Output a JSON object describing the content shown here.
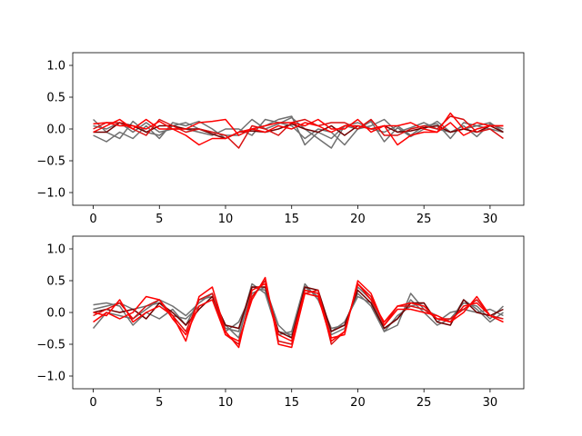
{
  "chart_data": [
    {
      "type": "line",
      "title": "",
      "xlabel": "",
      "ylabel": "",
      "xlim": [
        -1.55,
        32.55
      ],
      "ylim": [
        -1.2,
        1.2
      ],
      "xticks": [
        0,
        5,
        10,
        15,
        20,
        25,
        30
      ],
      "yticks": [
        -1.0,
        -0.5,
        0.0,
        0.5,
        1.0
      ],
      "xtick_labels": [
        "0",
        "5",
        "10",
        "15",
        "20",
        "25",
        "30"
      ],
      "ytick_labels": [
        "−1.0",
        "−0.5",
        "0.0",
        "0.5",
        "1.0"
      ],
      "grid": false,
      "x": [
        0,
        1,
        2,
        3,
        4,
        5,
        6,
        7,
        8,
        9,
        10,
        11,
        12,
        13,
        14,
        15,
        16,
        17,
        18,
        19,
        20,
        21,
        22,
        23,
        24,
        25,
        26,
        27,
        28,
        29,
        30,
        31
      ],
      "series": [
        {
          "color": "#707070",
          "values": [
            0.15,
            -0.05,
            -0.15,
            0.12,
            -0.05,
            -0.1,
            0.05,
            0.1,
            0.0,
            -0.05,
            -0.1,
            -0.1,
            0.0,
            0.05,
            0.15,
            0.2,
            -0.25,
            -0.05,
            -0.15,
            0.05,
            0.1,
            0.0,
            -0.05,
            0.05,
            -0.1,
            0.05,
            0.08,
            -0.15,
            0.1,
            0.05,
            0.0,
            -0.05
          ]
        },
        {
          "color": "#707070",
          "values": [
            -0.1,
            -0.2,
            -0.05,
            -0.15,
            0.05,
            -0.15,
            0.1,
            0.05,
            0.12,
            0.0,
            -0.15,
            -0.05,
            0.15,
            0.0,
            0.08,
            0.18,
            0.0,
            -0.15,
            -0.3,
            0.05,
            0.0,
            0.12,
            -0.2,
            0.02,
            -0.12,
            0.0,
            0.12,
            -0.05,
            0.05,
            -0.12,
            0.08,
            0.0
          ]
        },
        {
          "color": "#707070",
          "values": [
            0.05,
            0.0,
            0.1,
            -0.05,
            0.1,
            -0.05,
            0.0,
            0.0,
            -0.05,
            -0.1,
            0.0,
            0.0,
            -0.1,
            0.15,
            0.1,
            0.05,
            -0.15,
            0.0,
            -0.05,
            -0.25,
            0.0,
            0.05,
            0.15,
            -0.05,
            0.02,
            0.1,
            0.0,
            -0.05,
            0.0,
            0.05,
            0.1,
            -0.05
          ]
        },
        {
          "color": "#700000",
          "values": [
            -0.05,
            -0.05,
            0.1,
            0.05,
            -0.05,
            0.05,
            0.05,
            0.0,
            0.0,
            -0.08,
            -0.15,
            -0.05,
            -0.03,
            -0.05,
            0.0,
            0.08,
            0.0,
            -0.05,
            0.05,
            -0.1,
            0.05,
            0.0,
            0.05,
            -0.05,
            -0.03,
            0.02,
            0.05,
            -0.05,
            0.0,
            -0.05,
            0.05,
            -0.05
          ]
        },
        {
          "color": "#d81010",
          "values": [
            0.0,
            0.1,
            0.1,
            0.0,
            -0.1,
            0.15,
            0.05,
            -0.05,
            0.0,
            -0.05,
            -0.1,
            -0.3,
            0.05,
            0.0,
            -0.1,
            0.1,
            0.15,
            0.05,
            0.1,
            0.1,
            0.0,
            0.15,
            -0.1,
            -0.1,
            0.0,
            0.05,
            0.0,
            0.2,
            0.15,
            -0.05,
            0.0,
            -0.15
          ]
        },
        {
          "color": "#ff0000",
          "values": [
            -0.05,
            0.05,
            0.15,
            0.0,
            0.15,
            0.0,
            0.0,
            -0.1,
            -0.25,
            -0.15,
            -0.15,
            -0.05,
            0.0,
            0.05,
            0.1,
            0.1,
            0.05,
            0.15,
            0.0,
            0.0,
            0.15,
            -0.05,
            0.05,
            -0.25,
            -0.1,
            -0.05,
            -0.05,
            0.25,
            0.0,
            0.1,
            0.05,
            0.05
          ]
        },
        {
          "color": "#ff0000",
          "values": [
            0.08,
            0.1,
            0.05,
            0.05,
            0.0,
            0.12,
            0.0,
            0.0,
            0.1,
            0.12,
            0.15,
            -0.1,
            0.0,
            -0.05,
            0.05,
            0.0,
            0.1,
            0.05,
            -0.05,
            0.05,
            0.05,
            0.0,
            0.05,
            0.05,
            0.1,
            0.0,
            -0.05,
            0.1,
            -0.1,
            0.0,
            0.05,
            0.05
          ]
        }
      ]
    },
    {
      "type": "line",
      "title": "",
      "xlabel": "",
      "ylabel": "",
      "xlim": [
        -1.55,
        32.55
      ],
      "ylim": [
        -1.2,
        1.2
      ],
      "xticks": [
        0,
        5,
        10,
        15,
        20,
        25,
        30
      ],
      "yticks": [
        -1.0,
        -0.5,
        0.0,
        0.5,
        1.0
      ],
      "xtick_labels": [
        "0",
        "5",
        "10",
        "15",
        "20",
        "25",
        "30"
      ],
      "ytick_labels": [
        "−1.0",
        "−0.5",
        "0.0",
        "0.5",
        "1.0"
      ],
      "grid": false,
      "x": [
        0,
        1,
        2,
        3,
        4,
        5,
        6,
        7,
        8,
        9,
        10,
        11,
        12,
        13,
        14,
        15,
        16,
        17,
        18,
        19,
        20,
        21,
        22,
        23,
        24,
        25,
        26,
        27,
        28,
        29,
        30,
        31
      ],
      "series": [
        {
          "color": "#707070",
          "values": [
            0.12,
            0.15,
            0.1,
            -0.2,
            0.0,
            -0.1,
            0.05,
            -0.2,
            0.2,
            0.25,
            -0.2,
            -0.4,
            0.4,
            0.35,
            -0.3,
            -0.35,
            0.4,
            0.25,
            -0.25,
            -0.2,
            0.3,
            0.1,
            -0.3,
            -0.2,
            0.3,
            0.05,
            -0.05,
            -0.15,
            0.2,
            0.05,
            -0.15,
            0.0
          ]
        },
        {
          "color": "#707070",
          "values": [
            -0.25,
            0.0,
            -0.05,
            -0.1,
            0.05,
            0.2,
            0.1,
            -0.05,
            0.15,
            0.3,
            -0.3,
            -0.15,
            0.3,
            0.4,
            -0.2,
            -0.4,
            0.35,
            0.3,
            -0.35,
            -0.25,
            0.4,
            0.2,
            -0.25,
            -0.1,
            0.2,
            0.0,
            -0.2,
            -0.1,
            0.15,
            0.1,
            -0.1,
            0.1
          ]
        },
        {
          "color": "#707070",
          "values": [
            0.05,
            0.1,
            0.15,
            0.05,
            0.1,
            0.15,
            -0.05,
            -0.1,
            0.1,
            0.2,
            -0.25,
            -0.3,
            0.45,
            0.3,
            -0.35,
            -0.3,
            0.45,
            0.2,
            -0.3,
            -0.15,
            0.25,
            0.15,
            -0.3,
            -0.05,
            0.1,
            0.15,
            -0.15,
            0.0,
            0.05,
            0.0,
            0.05,
            -0.05
          ]
        },
        {
          "color": "#700000",
          "values": [
            0.0,
            0.05,
            0.0,
            0.05,
            -0.1,
            0.15,
            0.0,
            -0.2,
            0.05,
            0.25,
            -0.2,
            -0.25,
            0.4,
            0.4,
            -0.3,
            -0.4,
            0.4,
            0.35,
            -0.3,
            -0.2,
            0.35,
            0.15,
            -0.25,
            -0.1,
            0.15,
            0.15,
            -0.15,
            -0.2,
            0.2,
            0.0,
            -0.05,
            0.05
          ]
        },
        {
          "color": "#d81010",
          "values": [
            -0.05,
            0.05,
            0.15,
            -0.1,
            0.1,
            0.2,
            -0.05,
            -0.3,
            0.2,
            0.3,
            -0.35,
            -0.5,
            0.25,
            0.5,
            -0.45,
            -0.5,
            0.3,
            0.35,
            -0.5,
            -0.3,
            0.45,
            0.25,
            -0.2,
            0.1,
            0.1,
            0.05,
            -0.1,
            -0.1,
            0.05,
            0.2,
            -0.05,
            -0.1
          ]
        },
        {
          "color": "#ff0000",
          "values": [
            0.0,
            -0.05,
            0.2,
            -0.15,
            0.0,
            0.1,
            -0.05,
            -0.45,
            0.25,
            0.4,
            -0.3,
            -0.55,
            0.35,
            0.45,
            -0.35,
            -0.45,
            0.35,
            0.3,
            -0.4,
            -0.35,
            0.5,
            0.3,
            -0.2,
            0.05,
            0.05,
            0.0,
            -0.05,
            -0.15,
            0.0,
            0.25,
            -0.05,
            -0.15
          ]
        },
        {
          "color": "#ff0000",
          "values": [
            -0.15,
            0.0,
            -0.1,
            0.0,
            0.25,
            0.2,
            -0.1,
            -0.35,
            0.1,
            0.2,
            -0.35,
            -0.45,
            0.2,
            0.55,
            -0.5,
            -0.55,
            0.3,
            0.25,
            -0.45,
            -0.3,
            0.45,
            0.2,
            -0.15,
            0.1,
            0.15,
            0.1,
            -0.1,
            -0.15,
            0.1,
            0.15,
            -0.05,
            -0.15
          ]
        }
      ]
    }
  ]
}
